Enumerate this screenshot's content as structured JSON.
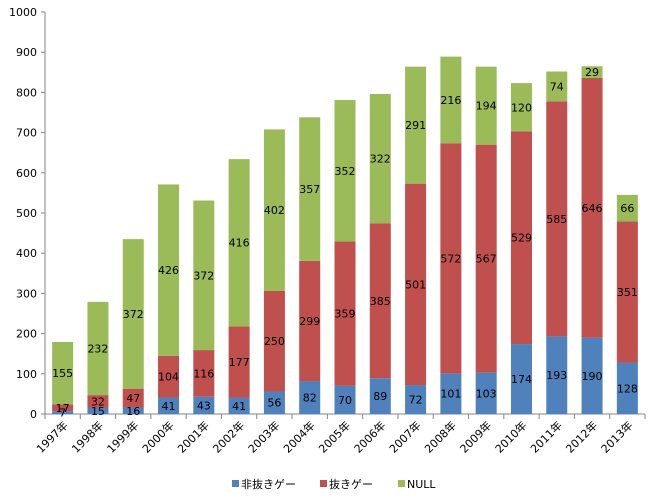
{
  "chart_data": {
    "type": "bar",
    "stacked": true,
    "title": "",
    "xlabel": "",
    "ylabel": "",
    "ylim": [
      0,
      1000
    ],
    "ytick_step": 100,
    "grid": false,
    "legend_position": "bottom",
    "categories": [
      "1997年",
      "1998年",
      "1999年",
      "2000年",
      "2001年",
      "2002年",
      "2003年",
      "2004年",
      "2005年",
      "2006年",
      "2007年",
      "2008年",
      "2009年",
      "2010年",
      "2011年",
      "2012年",
      "2013年"
    ],
    "series": [
      {
        "name": "非抜きゲー",
        "color": "#4F81BD",
        "values": [
          7,
          15,
          16,
          41,
          43,
          41,
          56,
          82,
          70,
          89,
          72,
          101,
          103,
          174,
          193,
          190,
          128
        ]
      },
      {
        "name": "抜きゲー",
        "color": "#C0504D",
        "values": [
          17,
          32,
          47,
          104,
          116,
          177,
          250,
          299,
          359,
          385,
          501,
          572,
          567,
          529,
          585,
          646,
          351
        ]
      },
      {
        "name": "NULL",
        "color": "#9BBB59",
        "values": [
          155,
          232,
          372,
          426,
          372,
          416,
          402,
          357,
          352,
          322,
          291,
          216,
          194,
          120,
          74,
          29,
          66
        ]
      }
    ]
  }
}
